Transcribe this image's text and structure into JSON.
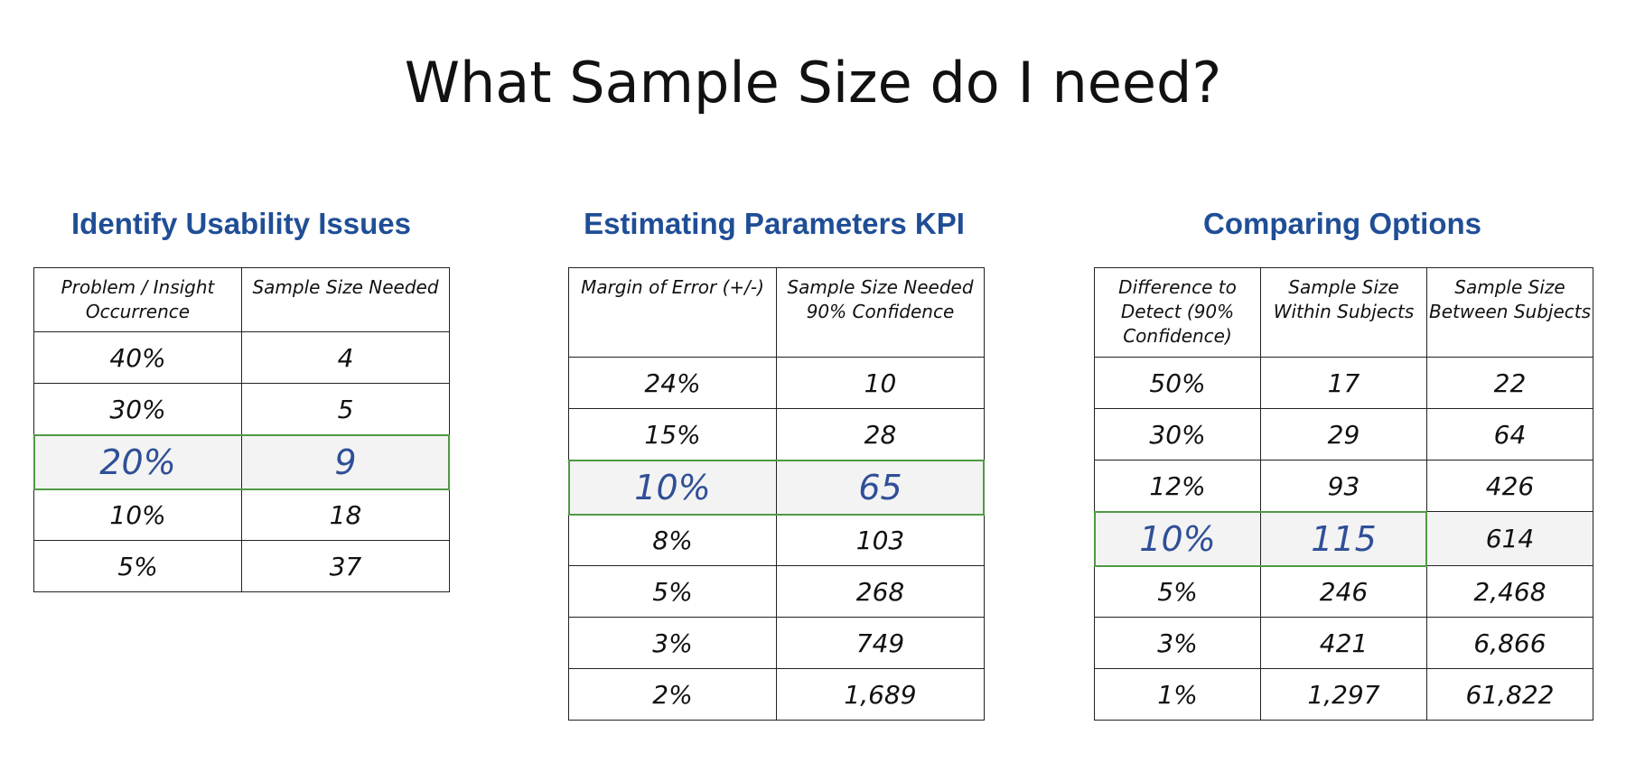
{
  "page": {
    "title": "What Sample Size do I need?"
  },
  "sections": [
    {
      "title": "Identify Usability Issues",
      "headers": [
        "Problem / Insight Occurrence",
        "Sample Size Needed"
      ],
      "rows": [
        [
          "40%",
          "4"
        ],
        [
          "30%",
          "5"
        ],
        [
          "20%",
          "9"
        ],
        [
          "10%",
          "18"
        ],
        [
          "5%",
          "37"
        ]
      ],
      "highlight_row": "20%"
    },
    {
      "title": "Estimating Parameters KPI",
      "headers": [
        "Margin of Error (+/-)",
        "Sample Size Needed 90% Confidence"
      ],
      "rows": [
        [
          "24%",
          "10"
        ],
        [
          "15%",
          "28"
        ],
        [
          "10%",
          "65"
        ],
        [
          "8%",
          "103"
        ],
        [
          "5%",
          "268"
        ],
        [
          "3%",
          "749"
        ],
        [
          "2%",
          "1,689"
        ]
      ],
      "highlight_row": "10%"
    },
    {
      "title": "Comparing Options",
      "headers": [
        "Difference to Detect (90% Confidence)",
        "Sample Size Within Subjects",
        "Sample Size Between Subjects"
      ],
      "rows": [
        [
          "50%",
          "17",
          "22"
        ],
        [
          "30%",
          "29",
          "64"
        ],
        [
          "12%",
          "93",
          "426"
        ],
        [
          "10%",
          "115",
          "614"
        ],
        [
          "5%",
          "246",
          "2,468"
        ],
        [
          "3%",
          "421",
          "6,866"
        ],
        [
          "1%",
          "1,297",
          "61,822"
        ]
      ],
      "highlight_row": "10%"
    }
  ],
  "colors": {
    "section_title": "#1f4e96",
    "highlight_text": "#2f4f98",
    "highlight_border": "#4f9a43",
    "highlight_fill": "#f3f3f3"
  }
}
